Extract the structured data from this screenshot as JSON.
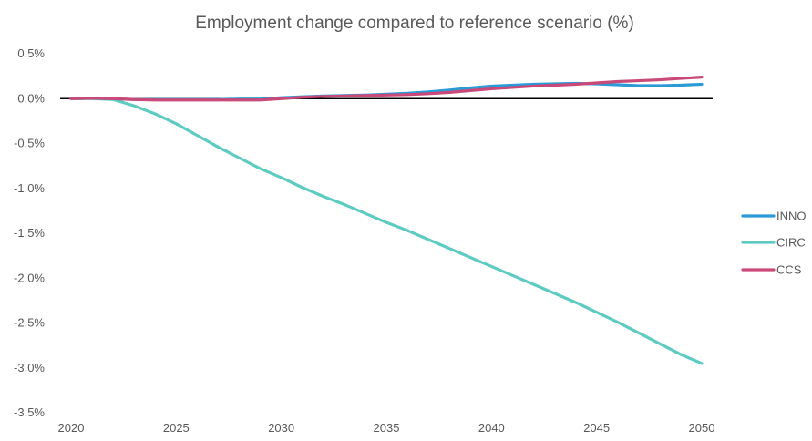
{
  "chart_data": {
    "type": "line",
    "title": "Employment change compared to reference scenario (%)",
    "xlabel": "",
    "ylabel": "",
    "x": [
      2020,
      2021,
      2022,
      2023,
      2024,
      2025,
      2026,
      2027,
      2028,
      2029,
      2030,
      2031,
      2032,
      2033,
      2034,
      2035,
      2036,
      2037,
      2038,
      2039,
      2040,
      2041,
      2042,
      2043,
      2044,
      2045,
      2046,
      2047,
      2048,
      2049,
      2050
    ],
    "xlim": [
      2020,
      2050
    ],
    "ylim": [
      -3.5,
      0.5
    ],
    "xticks": [
      2020,
      2025,
      2030,
      2035,
      2040,
      2045,
      2050
    ],
    "yticks": [
      0.5,
      0.0,
      -0.5,
      -1.0,
      -1.5,
      -2.0,
      -2.5,
      -3.0,
      -3.5
    ],
    "ytick_labels": [
      "0.5%",
      "0.0%",
      "-0.5%",
      "-1.0%",
      "-1.5%",
      "-2.0%",
      "-2.5%",
      "-3.0%",
      "-3.5%"
    ],
    "grid": false,
    "zero_line": true,
    "legend_position": "right",
    "series": [
      {
        "name": "INNO",
        "color": "#2b9bd6",
        "values": [
          0.0,
          0.005,
          0.0,
          -0.01,
          -0.01,
          -0.01,
          -0.01,
          -0.01,
          -0.005,
          -0.005,
          0.01,
          0.02,
          0.03,
          0.035,
          0.04,
          0.05,
          0.06,
          0.075,
          0.095,
          0.12,
          0.14,
          0.15,
          0.16,
          0.165,
          0.17,
          0.165,
          0.155,
          0.145,
          0.145,
          0.15,
          0.16
        ]
      },
      {
        "name": "CIRC",
        "color": "#5ecbc3",
        "values": [
          0.0,
          0.0,
          -0.01,
          -0.08,
          -0.17,
          -0.28,
          -0.41,
          -0.54,
          -0.66,
          -0.78,
          -0.88,
          -0.99,
          -1.09,
          -1.18,
          -1.28,
          -1.38,
          -1.47,
          -1.57,
          -1.67,
          -1.77,
          -1.87,
          -1.97,
          -2.07,
          -2.17,
          -2.27,
          -2.38,
          -2.49,
          -2.61,
          -2.73,
          -2.85,
          -2.95
        ]
      },
      {
        "name": "CCS",
        "color": "#c94a79",
        "values": [
          0.0,
          0.005,
          0.0,
          -0.01,
          -0.015,
          -0.015,
          -0.015,
          -0.015,
          -0.015,
          -0.015,
          0.0,
          0.015,
          0.025,
          0.03,
          0.035,
          0.04,
          0.045,
          0.055,
          0.07,
          0.09,
          0.11,
          0.125,
          0.14,
          0.15,
          0.16,
          0.175,
          0.19,
          0.2,
          0.21,
          0.225,
          0.24
        ]
      }
    ]
  }
}
